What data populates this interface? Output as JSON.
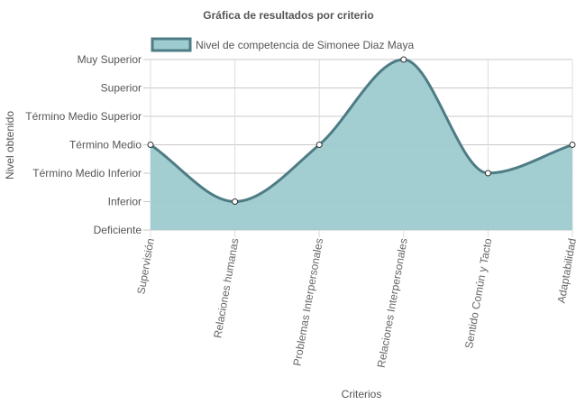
{
  "chart_data": {
    "type": "area",
    "title": "Gráfica de resultados por criterio",
    "xlabel": "Criterios",
    "ylabel": "Nivel obtenido",
    "levels": [
      "Deficiente",
      "Inferior",
      "Término Medio Inferior",
      "Término Medio",
      "Término Medio Superior",
      "Superior",
      "Muy Superior"
    ],
    "categories": [
      "Supervisión",
      "Relaciones humanas",
      "Problemas Interpersonales",
      "Relaciones Interpersonales",
      "Sentido Común y Tacto",
      "Adaptabilidad"
    ],
    "series": [
      {
        "name": "Nivel de competencia de Simonee Diaz Maya",
        "values": [
          "Término Medio",
          "Inferior",
          "Término Medio",
          "Muy Superior",
          "Término Medio Inferior",
          "Término Medio"
        ],
        "fill_color": "#9ecbcf",
        "line_color": "#4e7c85"
      }
    ],
    "ylim": [
      "Deficiente",
      "Muy Superior"
    ],
    "grid": true,
    "legend_position": "top"
  }
}
